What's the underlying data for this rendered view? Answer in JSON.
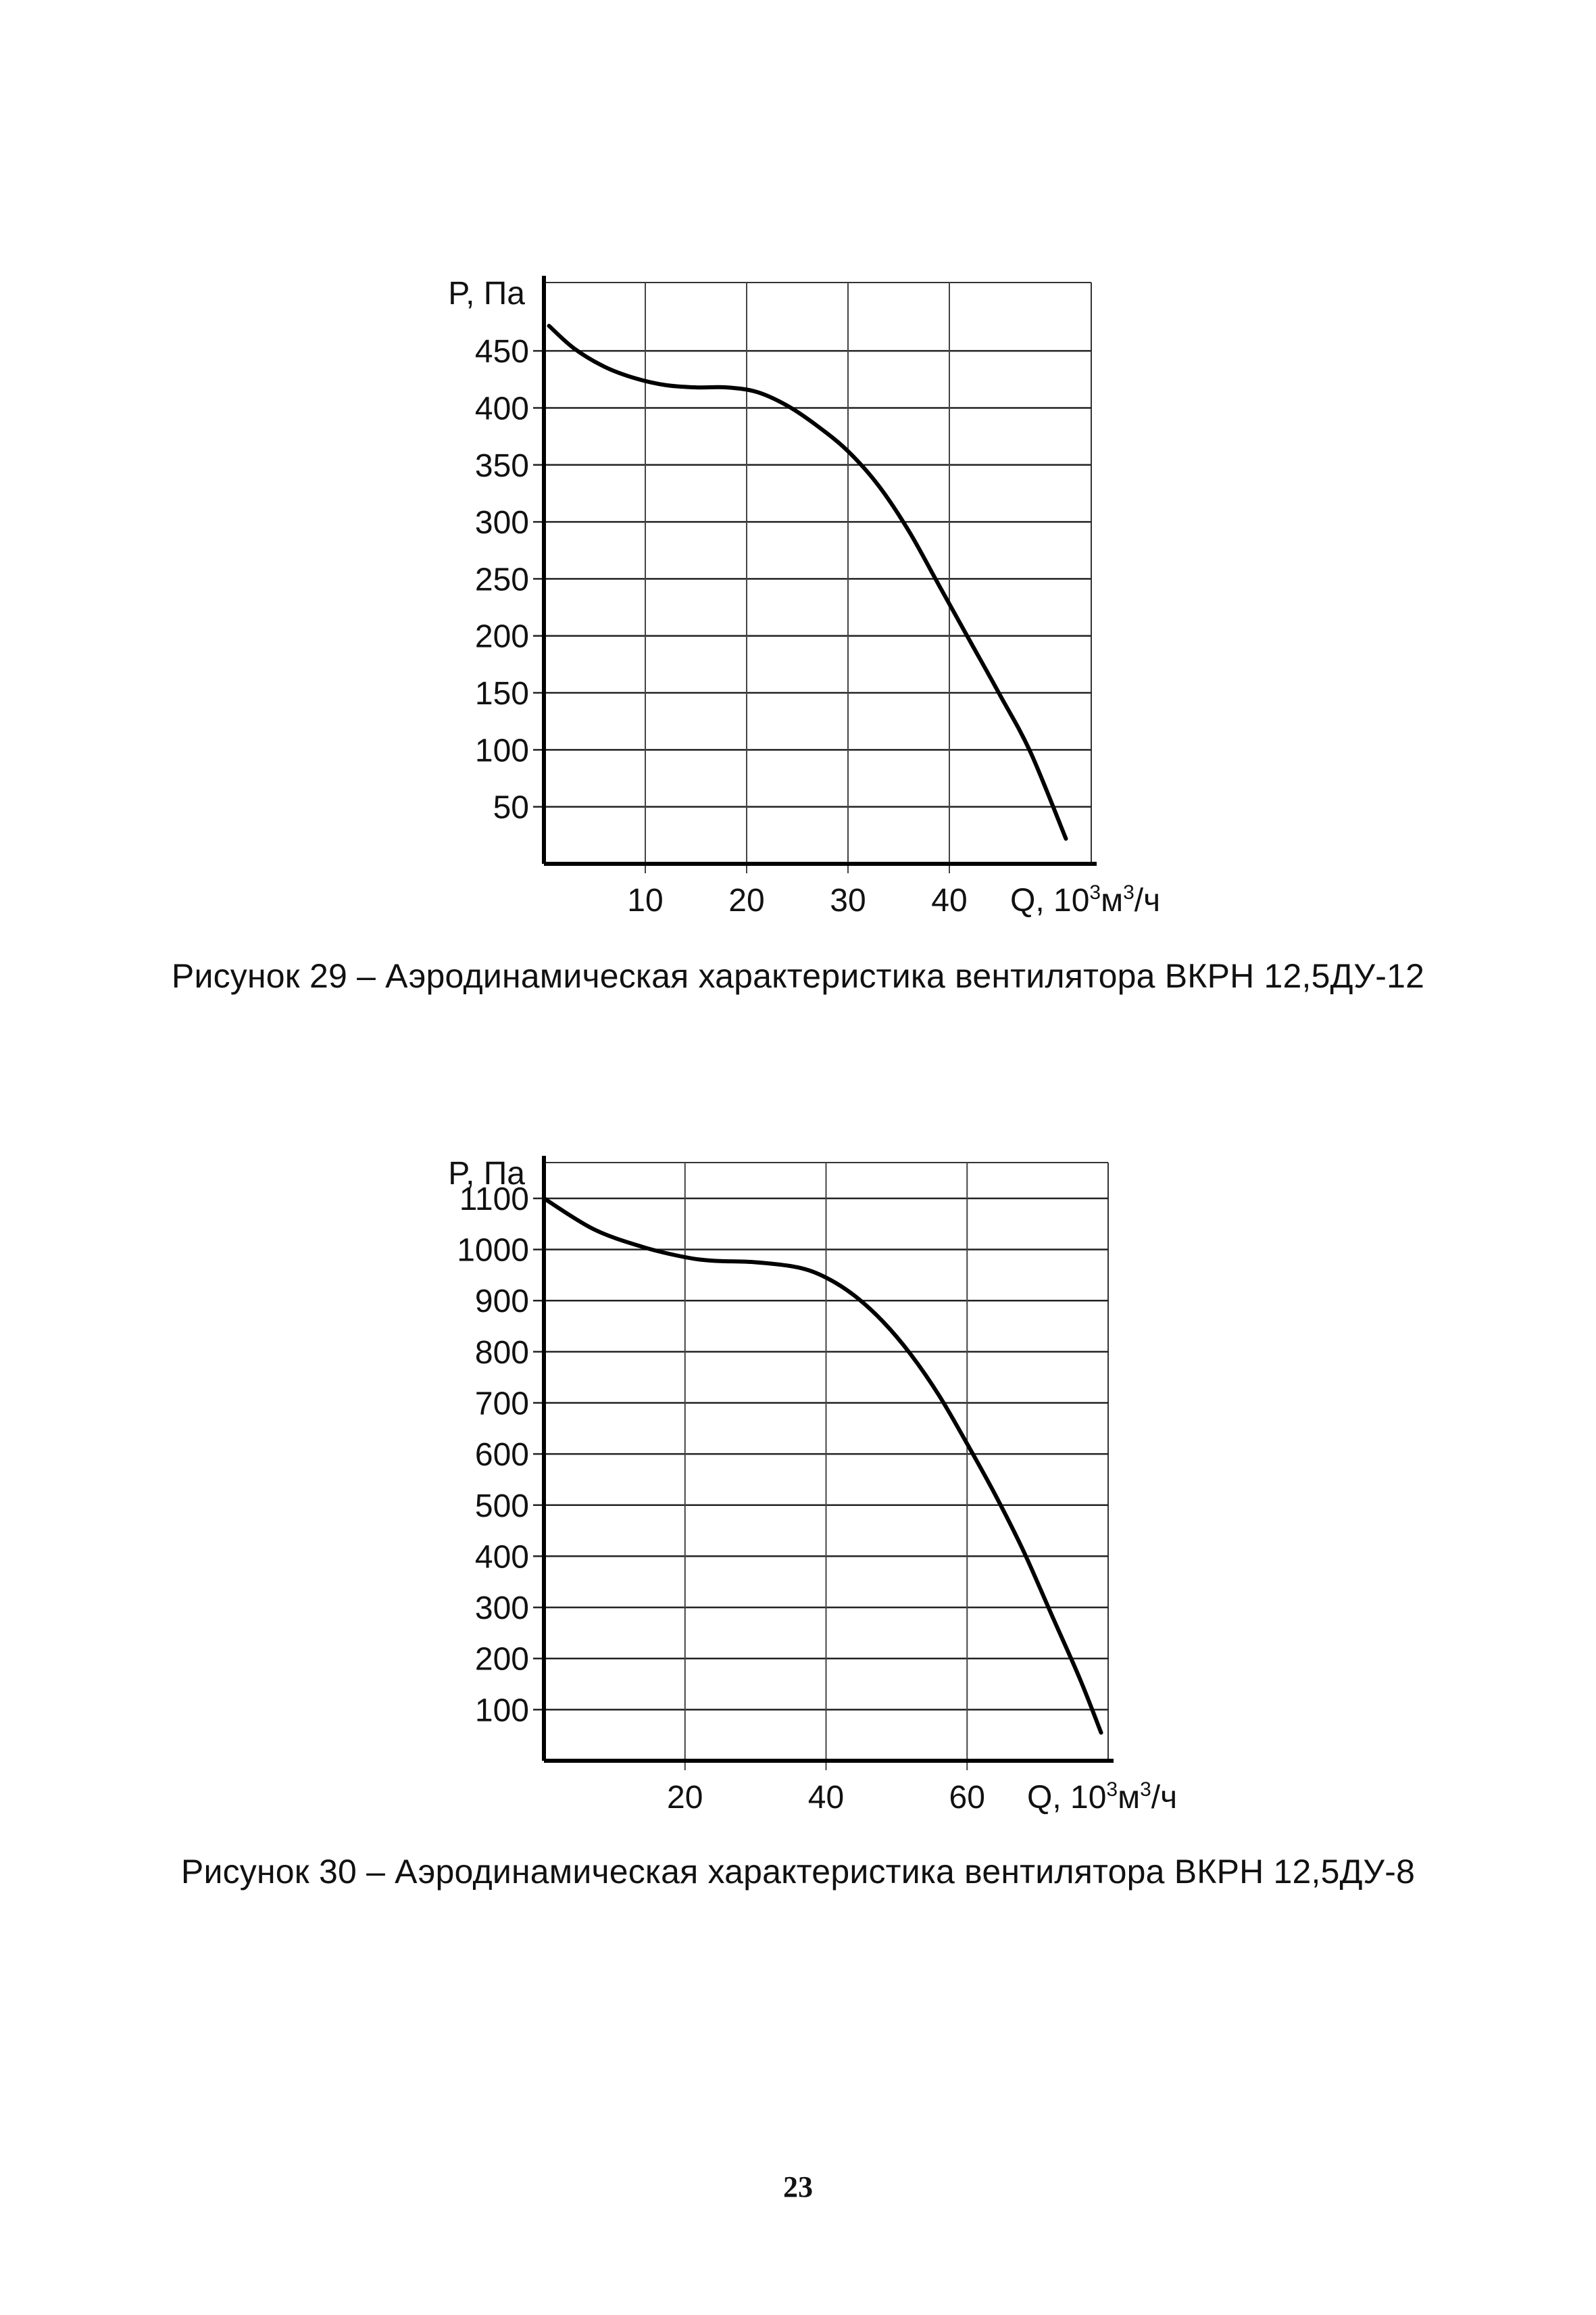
{
  "chart_data": [
    {
      "type": "line",
      "ylabel": "P, Па",
      "xlabel_text": "Q, 10",
      "xlabel_sup1": "3",
      "xlabel_mid": "м",
      "xlabel_sup2": "3",
      "xlabel_end": "/ч",
      "xlim": [
        0,
        54
      ],
      "ylim": [
        0,
        510
      ],
      "xticks": [
        10,
        20,
        30,
        40
      ],
      "yticks": [
        50,
        100,
        150,
        200,
        250,
        300,
        350,
        400,
        450
      ],
      "x": [
        0.5,
        3,
        6,
        9,
        12,
        15,
        18,
        21,
        24,
        27,
        30,
        33,
        36,
        39,
        42,
        45,
        48,
        51.5
      ],
      "y": [
        472,
        452,
        436,
        426,
        420,
        418,
        418,
        414,
        402,
        384,
        362,
        332,
        292,
        244,
        196,
        148,
        98,
        22
      ]
    },
    {
      "type": "line",
      "ylabel": "P, Па",
      "xlabel_text": "Q, 10",
      "xlabel_sup1": "3",
      "xlabel_mid": "м",
      "xlabel_sup2": "3",
      "xlabel_end": "/ч",
      "xlim": [
        0,
        80
      ],
      "ylim": [
        0,
        1170
      ],
      "xticks": [
        20,
        40,
        60
      ],
      "yticks": [
        100,
        200,
        300,
        400,
        500,
        600,
        700,
        800,
        900,
        1000,
        1100
      ],
      "x": [
        0,
        7,
        14,
        20,
        24,
        30,
        36,
        40,
        44,
        48,
        52,
        56,
        60,
        64,
        68,
        72,
        76,
        79
      ],
      "y": [
        1100,
        1040,
        1005,
        985,
        978,
        975,
        965,
        945,
        910,
        860,
        795,
        715,
        620,
        520,
        410,
        285,
        160,
        55
      ]
    }
  ],
  "captions": {
    "fig29": "Рисунок 29 – Аэродинамическая характеристика вентилятора ВКРН 12,5ДУ-12",
    "fig30": "Рисунок 30 – Аэродинамическая характеристика вентилятора ВКРН 12,5ДУ-8"
  },
  "page_number": "23"
}
